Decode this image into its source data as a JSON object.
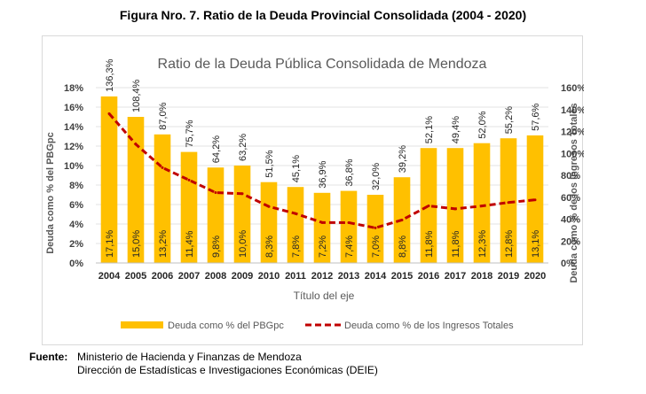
{
  "figure_caption": "Figura Nro. 7. Ratio de la Deuda Provincial Consolidada (2004 - 2020)",
  "source": {
    "label": "Fuente:",
    "line1": "Ministerio de Hacienda y Finanzas de Mendoza",
    "line2": "Dirección de Estadísticas e Investigaciones Económicas (DEIE)"
  },
  "chart_data": {
    "type": "bar",
    "title": "Ratio de la Deuda Pública Consolidada de Mendoza",
    "xlabel": "Título del eje",
    "ylabel": "Deuda como % del PBGpc",
    "y2label": "Deuda como % de los Ingresos Totales",
    "categories": [
      "2004",
      "2005",
      "2006",
      "2007",
      "2008",
      "2009",
      "2010",
      "2011",
      "2012",
      "2013",
      "2014",
      "2015",
      "2016",
      "2017",
      "2018",
      "2019",
      "2020"
    ],
    "ylim": [
      0,
      18
    ],
    "yticks": [
      "0%",
      "2%",
      "4%",
      "6%",
      "8%",
      "10%",
      "12%",
      "14%",
      "16%",
      "18%"
    ],
    "y2lim": [
      0,
      160
    ],
    "y2ticks": [
      "0%",
      "20%",
      "40%",
      "60%",
      "80%",
      "100%",
      "120%",
      "140%",
      "160%"
    ],
    "grid": true,
    "legend_position": "bottom",
    "series": [
      {
        "name": "Deuda como % del PBGpc",
        "type": "bar",
        "axis": "left",
        "color": "#FFC000",
        "values": [
          17.1,
          15.0,
          13.2,
          11.4,
          9.8,
          10.0,
          8.3,
          7.8,
          7.2,
          7.4,
          7.0,
          8.8,
          11.8,
          11.8,
          12.3,
          12.8,
          13.1
        ],
        "labels": [
          "17,1%",
          "15,0%",
          "13,2%",
          "11,4%",
          "9,8%",
          "10,0%",
          "8,3%",
          "7,8%",
          "7,2%",
          "7,4%",
          "7,0%",
          "8,8%",
          "11,8%",
          "11,8%",
          "12,3%",
          "12,8%",
          "13,1%"
        ]
      },
      {
        "name": "Deuda como % de los Ingresos Totales",
        "type": "line",
        "axis": "right",
        "color": "#C00000",
        "style": "dashed",
        "values": [
          136.3,
          108.4,
          87.0,
          75.7,
          64.2,
          63.2,
          51.5,
          45.1,
          36.9,
          36.8,
          32.0,
          39.2,
          52.1,
          49.4,
          52.0,
          55.2,
          57.6
        ],
        "labels": [
          "136,3%",
          "108,4%",
          "87,0%",
          "75,7%",
          "64,2%",
          "63,2%",
          "51,5%",
          "45,1%",
          "36,9%",
          "36,8%",
          "32,0%",
          "39,2%",
          "52,1%",
          "49,4%",
          "52,0%",
          "55,2%",
          "57,6%"
        ]
      }
    ]
  }
}
